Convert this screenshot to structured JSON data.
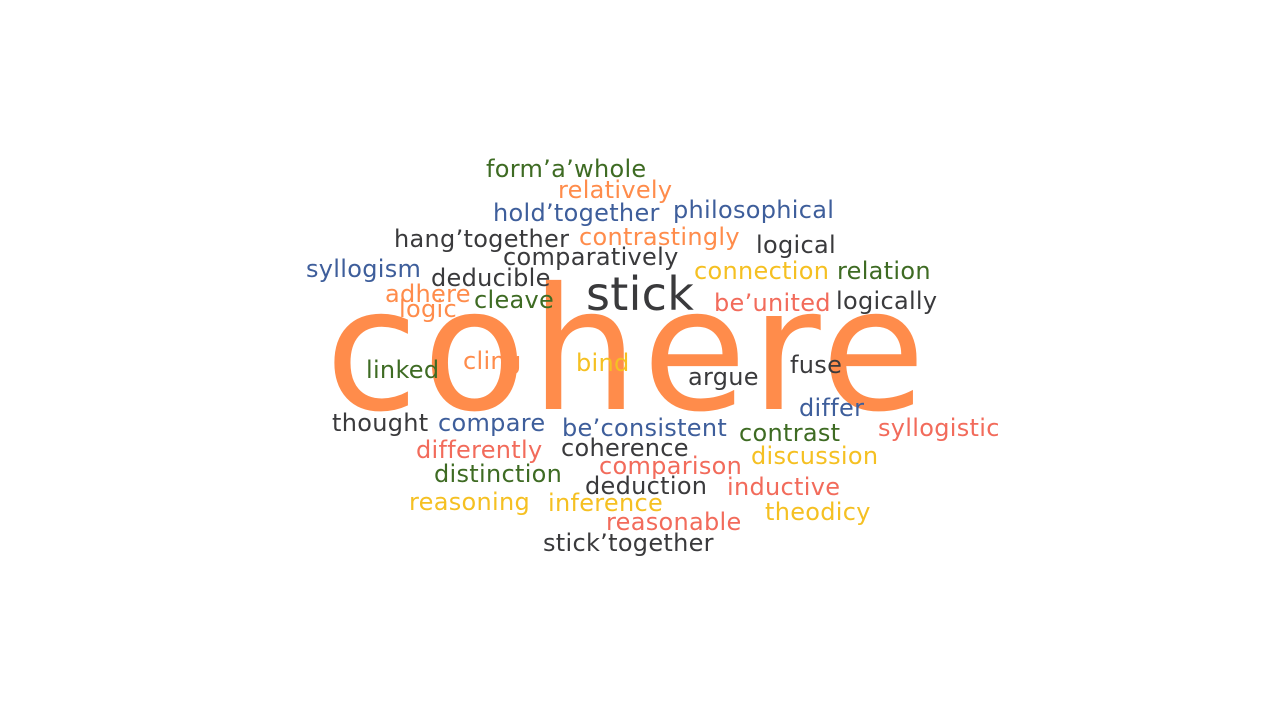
{
  "main_word": {
    "text": "cohere",
    "color": "#FF8C4B"
  },
  "colors": {
    "orange": "#FF8C4B",
    "dark": "#3A3A3C",
    "blue": "#3E5E9B",
    "green": "#3E6B23",
    "yellow": "#F5C022",
    "red": "#F26B5B"
  },
  "words": [
    {
      "text": "form’a’whole",
      "color": "#3E6B23"
    },
    {
      "text": "relatively",
      "color": "#FF8C4B"
    },
    {
      "text": "hold’together",
      "color": "#3E5E9B"
    },
    {
      "text": "philosophical",
      "color": "#3E5E9B"
    },
    {
      "text": "hang’together",
      "color": "#3A3A3C"
    },
    {
      "text": "contrastingly",
      "color": "#FF8C4B"
    },
    {
      "text": "logical",
      "color": "#3A3A3C"
    },
    {
      "text": "comparatively",
      "color": "#3A3A3C"
    },
    {
      "text": "syllogism",
      "color": "#3E5E9B"
    },
    {
      "text": "deducible",
      "color": "#3A3A3C"
    },
    {
      "text": "connection",
      "color": "#F5C022"
    },
    {
      "text": "relation",
      "color": "#3E6B23"
    },
    {
      "text": "stick",
      "color": "#3A3A3C"
    },
    {
      "text": "adhere",
      "color": "#FF8C4B"
    },
    {
      "text": "cleave",
      "color": "#3E6B23"
    },
    {
      "text": "be’united",
      "color": "#F26B5B"
    },
    {
      "text": "logically",
      "color": "#3A3A3C"
    },
    {
      "text": "logic",
      "color": "#FF8C4B"
    },
    {
      "text": "cling",
      "color": "#FF8C4B"
    },
    {
      "text": "bind",
      "color": "#F5C022"
    },
    {
      "text": "fuse",
      "color": "#3A3A3C"
    },
    {
      "text": "linked",
      "color": "#3E6B23"
    },
    {
      "text": "argue",
      "color": "#3A3A3C"
    },
    {
      "text": "differ",
      "color": "#3E5E9B"
    },
    {
      "text": "thought",
      "color": "#3A3A3C"
    },
    {
      "text": "compare",
      "color": "#3E5E9B"
    },
    {
      "text": "be’consistent",
      "color": "#3E5E9B"
    },
    {
      "text": "contrast",
      "color": "#3E6B23"
    },
    {
      "text": "syllogistic",
      "color": "#F26B5B"
    },
    {
      "text": "differently",
      "color": "#F26B5B"
    },
    {
      "text": "coherence",
      "color": "#3A3A3C"
    },
    {
      "text": "discussion",
      "color": "#F5C022"
    },
    {
      "text": "distinction",
      "color": "#3E6B23"
    },
    {
      "text": "comparison",
      "color": "#F26B5B"
    },
    {
      "text": "deduction",
      "color": "#3A3A3C"
    },
    {
      "text": "inductive",
      "color": "#F26B5B"
    },
    {
      "text": "reasoning",
      "color": "#F5C022"
    },
    {
      "text": "inference",
      "color": "#F5C022"
    },
    {
      "text": "theodicy",
      "color": "#F5C022"
    },
    {
      "text": "reasonable",
      "color": "#F26B5B"
    },
    {
      "text": "stick’together",
      "color": "#3A3A3C"
    }
  ]
}
